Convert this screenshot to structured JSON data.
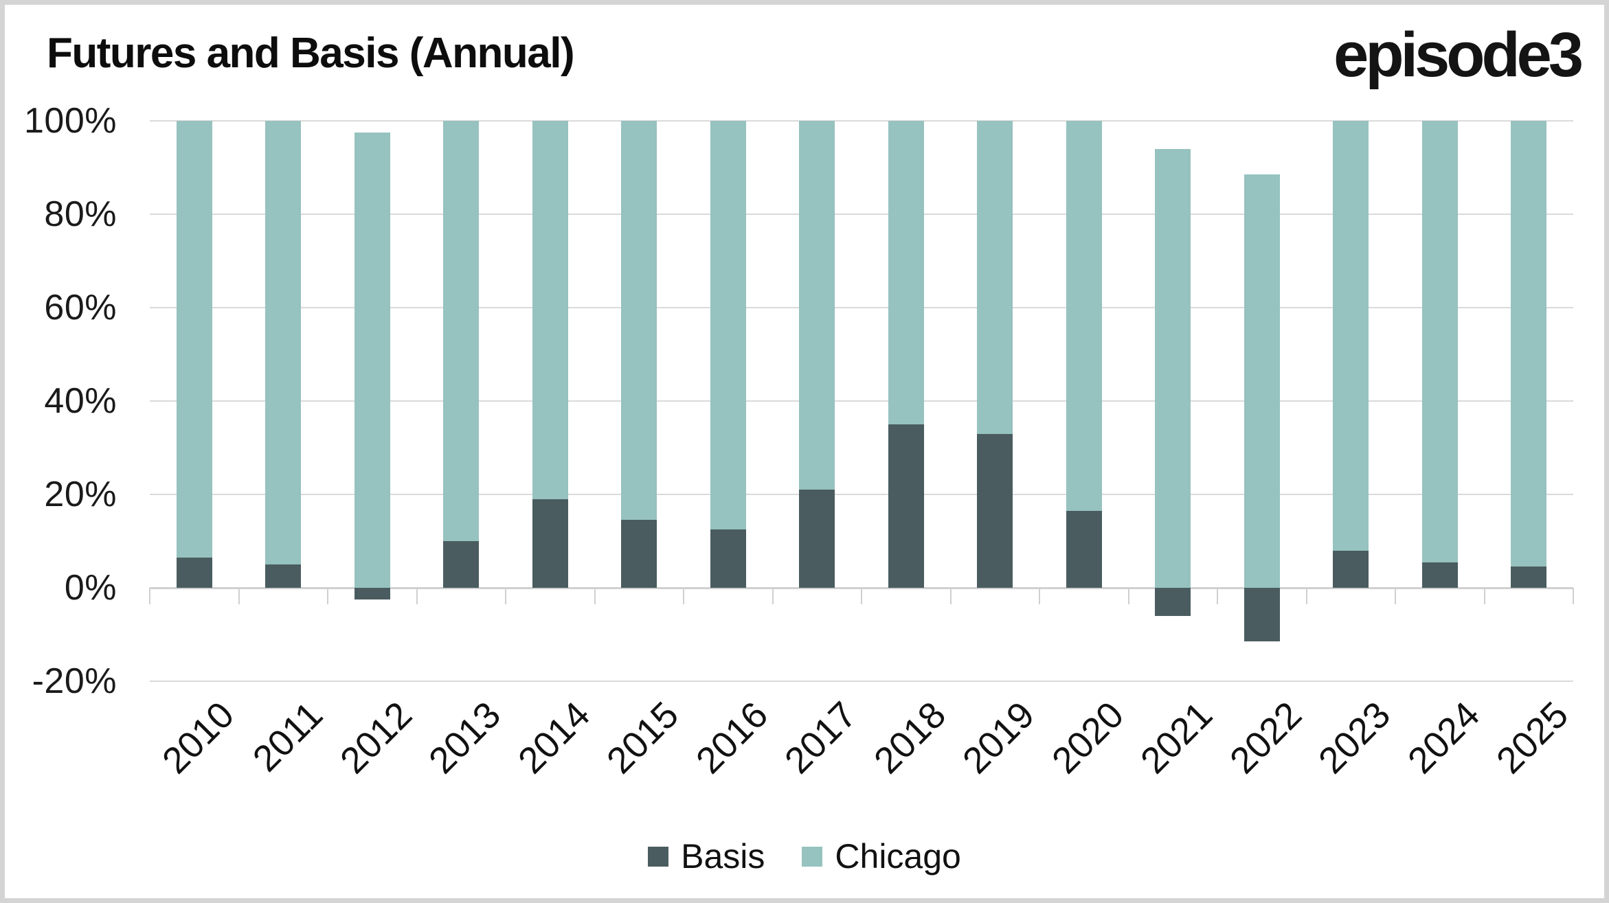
{
  "header": {
    "title": "Futures and Basis (Annual)",
    "logo_text": "episode3"
  },
  "chart_data": {
    "type": "bar",
    "stacked": true,
    "title": "Futures and Basis (Annual)",
    "categories": [
      "2010",
      "2011",
      "2012",
      "2013",
      "2014",
      "2015",
      "2016",
      "2017",
      "2018",
      "2019",
      "2020",
      "2021",
      "2022",
      "2023",
      "2024",
      "2025"
    ],
    "series": [
      {
        "name": "Basis",
        "color": "#4a5c5f",
        "values": [
          6.5,
          5,
          -2.5,
          10,
          19,
          14.5,
          12.5,
          21,
          35,
          33,
          16.5,
          -6,
          -11.5,
          8,
          5.5,
          4.5
        ]
      },
      {
        "name": "Chicago",
        "color": "#96c2bf",
        "values": [
          93.5,
          95,
          97.5,
          90,
          81,
          85.5,
          87.5,
          79,
          65,
          67,
          83.5,
          94,
          88.5,
          92,
          94.5,
          95.5
        ]
      }
    ],
    "xlabel": "",
    "ylabel": "",
    "ylim": [
      -20,
      100
    ],
    "yticks": [
      100,
      80,
      60,
      40,
      20,
      0,
      -20
    ],
    "ytick_labels": [
      "100%",
      "80%",
      "60%",
      "40%",
      "20%",
      "0%",
      "-20%"
    ],
    "grid": true,
    "legend_position": "bottom",
    "legend": [
      {
        "label": "Basis",
        "color": "#4a5c5f"
      },
      {
        "label": "Chicago",
        "color": "#96c2bf"
      }
    ]
  },
  "style": {
    "gridline_color": "#dadada",
    "axis_color": "#d0d0d0",
    "border_color": "#d4d4d4",
    "background": "#ffffff"
  }
}
